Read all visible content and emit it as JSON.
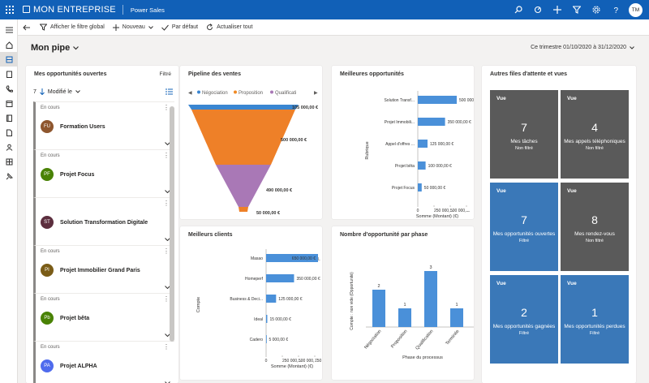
{
  "topbar": {
    "brand": "MON ENTREPRISE",
    "app": "Power Sales",
    "avatar_initials": "TM"
  },
  "cmdbar": {
    "show_global_filter": "Afficher le filtre global",
    "new": "Nouveau",
    "default": "Par défaut",
    "refresh_all": "Actualiser tout"
  },
  "page": {
    "title": "Mon pipe",
    "period": "Ce trimestre 01/10/2020 à 31/12/2020"
  },
  "opportunities": {
    "title": "Mes opportunités ouvertes",
    "filter": "Filtré",
    "sort_count": "7",
    "sort_field": "Modifié le",
    "items": [
      {
        "status": "En cours",
        "initials": "FU",
        "name": "Formation Users",
        "color": "#8e562e"
      },
      {
        "status": "En cours",
        "initials": "PF",
        "name": "Projet Focus",
        "color": "#498205"
      },
      {
        "status": "",
        "initials": "ST",
        "name": "Solution Transformation Digitale",
        "color": "#5c2e3e"
      },
      {
        "status": "En cours",
        "initials": "PI",
        "name": "Projet Immobilier Grand Paris",
        "color": "#7a5c17"
      },
      {
        "status": "En cours",
        "initials": "Pb",
        "name": "Projet bêta",
        "color": "#498205"
      },
      {
        "status": "En cours",
        "initials": "PA",
        "name": "Projet ALPHA",
        "color": "#4f6bed"
      }
    ]
  },
  "pipeline": {
    "title": "Pipeline des ventes",
    "legend": [
      "Négociation",
      "Proposition",
      "Qualificati"
    ],
    "legend_colors": [
      "#3a86d1",
      "#f08a24",
      "#a978b6"
    ],
    "labels": [
      "105 000,00 €",
      "500 000,00 €",
      "490 000,00 €",
      "50 000,00 €"
    ],
    "colors": [
      "#3a86d1",
      "#ee8028",
      "#a978b6",
      "#ee8028"
    ]
  },
  "best_opps": {
    "title": "Meilleures opportunités",
    "ylabel": "Rubrique",
    "xlabel": "Somme (Montant) (€)",
    "bars": [
      {
        "cat": "Solution Transf...",
        "label": "500 000,00 €"
      },
      {
        "cat": "Projet Immobili...",
        "label": "350 000,00 €"
      },
      {
        "cat": "Appel d'offres ...",
        "label": "125 000,00 €"
      },
      {
        "cat": "Projet bêta",
        "label": "100 000,00 €"
      },
      {
        "cat": "Projet Focus",
        "label": "50 000,00 €"
      }
    ],
    "ticks": [
      "0",
      "250 000,...",
      "500 000,...",
      "..."
    ]
  },
  "best_clients": {
    "title": "Meilleurs clients",
    "ylabel": "Compte",
    "xlabel": "Somme (Montant) (€)",
    "extra": "L",
    "bars": [
      {
        "cat": "Masao",
        "label": "650 000,00 €"
      },
      {
        "cat": "Homeperf",
        "label": "350 000,00 €"
      },
      {
        "cat": "Business & Deci...",
        "label": "125 000,00 €"
      },
      {
        "cat": "Ideal",
        "label": "15 000,00 €"
      },
      {
        "cat": "Cadero",
        "label": "5 000,00 €"
      }
    ],
    "ticks": [
      "0",
      "250 000,...",
      "500 000,...",
      "750 000,..."
    ]
  },
  "phases": {
    "title": "Nombre d'opportunité par phase",
    "ylabel": "Compte : non vide (Opportunité)",
    "xlabel": "Phase du processus",
    "cats": [
      "Négociation",
      "Proposition",
      "Qualification",
      "Terminée"
    ],
    "values": [
      2,
      1,
      3,
      1
    ]
  },
  "queues": {
    "title": "Autres files d'attente et vues",
    "tiles": [
      {
        "vue": "Vue",
        "num": "7",
        "label": "Mes tâches",
        "sub": "Non filtré",
        "color": "#5a5a5a"
      },
      {
        "vue": "Vue",
        "num": "4",
        "label": "Mes appels téléphoniques",
        "sub": "Non filtré",
        "color": "#5a5a5a"
      },
      {
        "vue": "Vue",
        "num": "7",
        "label": "Mes opportunités ouvertes",
        "sub": "Filtré",
        "color": "#3a78b8"
      },
      {
        "vue": "Vue",
        "num": "8",
        "label": "Mes rendez-vous",
        "sub": "Non filtré",
        "color": "#5a5a5a"
      },
      {
        "vue": "Vue",
        "num": "2",
        "label": "Mes opportunités gagnées",
        "sub": "Filtré",
        "color": "#3a78b8"
      },
      {
        "vue": "Vue",
        "num": "1",
        "label": "Mes opportunités perdues",
        "sub": "Filtré",
        "color": "#3a78b8"
      }
    ]
  },
  "chart_data": [
    {
      "type": "bar",
      "title": "Meilleures opportunités",
      "categories": [
        "Solution Transf...",
        "Projet Immobili...",
        "Appel d'offres ...",
        "Projet bêta",
        "Projet Focus"
      ],
      "values": [
        500000,
        350000,
        125000,
        100000,
        50000
      ],
      "xlabel": "Somme (Montant) (€)",
      "ylabel": "Rubrique"
    },
    {
      "type": "bar",
      "title": "Meilleurs clients",
      "categories": [
        "Masao",
        "Homeperf",
        "Business & Deci...",
        "Ideal",
        "Cadero"
      ],
      "values": [
        650000,
        350000,
        125000,
        15000,
        5000
      ],
      "xlabel": "Somme (Montant) (€)",
      "ylabel": "Compte"
    },
    {
      "type": "bar",
      "title": "Nombre d'opportunité par phase",
      "categories": [
        "Négociation",
        "Proposition",
        "Qualification",
        "Terminée"
      ],
      "values": [
        2,
        1,
        3,
        1
      ],
      "xlabel": "Phase du processus",
      "ylabel": "Compte : non vide (Opportunité)"
    }
  ]
}
